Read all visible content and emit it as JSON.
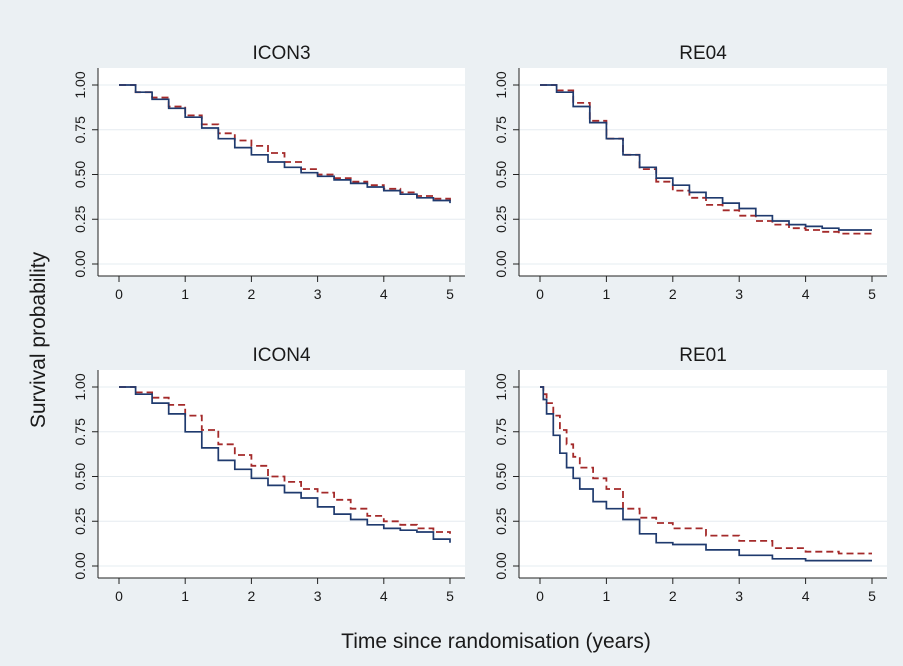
{
  "colors": {
    "outer_background": "#ebf0f3",
    "panel_background": "#ffffff",
    "series_solid": "#1f3a6e",
    "series_dashed": "#a42a2a"
  },
  "figure": {
    "xlabel": "Time since randomisation (years)",
    "ylabel": "Survival probability"
  },
  "chart_data": [
    {
      "type": "line",
      "title": "ICON3",
      "xlim": [
        0,
        5
      ],
      "ylim": [
        0,
        1
      ],
      "x_ticks": [
        "0",
        "1",
        "2",
        "3",
        "4",
        "5"
      ],
      "y_ticks": [
        "0.00",
        "0.25",
        "0.50",
        "0.75",
        "1.00"
      ],
      "grid": true,
      "series": [
        {
          "style": "solid",
          "x": [
            0,
            0.25,
            0.5,
            0.75,
            1,
            1.25,
            1.5,
            1.75,
            2,
            2.25,
            2.5,
            2.75,
            3,
            3.25,
            3.5,
            3.75,
            4,
            4.25,
            4.5,
            4.75,
            5
          ],
          "y": [
            1.0,
            0.96,
            0.92,
            0.87,
            0.82,
            0.76,
            0.7,
            0.65,
            0.61,
            0.57,
            0.54,
            0.51,
            0.49,
            0.47,
            0.45,
            0.43,
            0.41,
            0.39,
            0.37,
            0.355,
            0.34
          ]
        },
        {
          "style": "dashed",
          "x": [
            0,
            0.25,
            0.5,
            0.75,
            1,
            1.25,
            1.5,
            1.75,
            2,
            2.25,
            2.5,
            2.75,
            3,
            3.25,
            3.5,
            3.75,
            4,
            4.25,
            4.5,
            4.75,
            5
          ],
          "y": [
            1.0,
            0.96,
            0.93,
            0.88,
            0.83,
            0.78,
            0.73,
            0.69,
            0.66,
            0.62,
            0.57,
            0.53,
            0.5,
            0.48,
            0.46,
            0.44,
            0.42,
            0.4,
            0.38,
            0.365,
            0.35
          ]
        }
      ]
    },
    {
      "type": "line",
      "title": "RE04",
      "xlim": [
        0,
        5
      ],
      "ylim": [
        0,
        1
      ],
      "x_ticks": [
        "0",
        "1",
        "2",
        "3",
        "4",
        "5"
      ],
      "y_ticks": [
        "0.00",
        "0.25",
        "0.50",
        "0.75",
        "1.00"
      ],
      "grid": true,
      "series": [
        {
          "style": "solid",
          "x": [
            0,
            0.25,
            0.5,
            0.75,
            1,
            1.25,
            1.5,
            1.75,
            2,
            2.25,
            2.5,
            2.75,
            3,
            3.25,
            3.5,
            3.75,
            4,
            4.25,
            4.5,
            4.75,
            5
          ],
          "y": [
            1.0,
            0.96,
            0.88,
            0.79,
            0.7,
            0.61,
            0.54,
            0.48,
            0.44,
            0.4,
            0.37,
            0.34,
            0.31,
            0.27,
            0.24,
            0.22,
            0.21,
            0.2,
            0.19,
            0.19,
            0.19
          ]
        },
        {
          "style": "dashed",
          "x": [
            0,
            0.25,
            0.5,
            0.75,
            1,
            1.25,
            1.5,
            1.75,
            2,
            2.25,
            2.5,
            2.75,
            3,
            3.25,
            3.5,
            3.75,
            4,
            4.25,
            4.5,
            4.75,
            5
          ],
          "y": [
            1.0,
            0.97,
            0.9,
            0.8,
            0.7,
            0.61,
            0.53,
            0.46,
            0.41,
            0.37,
            0.33,
            0.3,
            0.27,
            0.24,
            0.22,
            0.2,
            0.19,
            0.18,
            0.17,
            0.17,
            0.17
          ]
        }
      ]
    },
    {
      "type": "line",
      "title": "ICON4",
      "xlim": [
        0,
        5
      ],
      "ylim": [
        0,
        1
      ],
      "x_ticks": [
        "0",
        "1",
        "2",
        "3",
        "4",
        "5"
      ],
      "y_ticks": [
        "0.00",
        "0.25",
        "0.50",
        "0.75",
        "1.00"
      ],
      "grid": true,
      "series": [
        {
          "style": "solid",
          "x": [
            0,
            0.25,
            0.5,
            0.75,
            1,
            1.25,
            1.5,
            1.75,
            2,
            2.25,
            2.5,
            2.75,
            3,
            3.25,
            3.5,
            3.75,
            4,
            4.25,
            4.5,
            4.75,
            5
          ],
          "y": [
            1.0,
            0.96,
            0.91,
            0.85,
            0.75,
            0.66,
            0.59,
            0.54,
            0.49,
            0.45,
            0.41,
            0.38,
            0.33,
            0.29,
            0.26,
            0.23,
            0.21,
            0.2,
            0.19,
            0.15,
            0.13
          ]
        },
        {
          "style": "dashed",
          "x": [
            0,
            0.25,
            0.5,
            0.75,
            1,
            1.25,
            1.5,
            1.75,
            2,
            2.25,
            2.5,
            2.75,
            3,
            3.25,
            3.5,
            3.75,
            4,
            4.25,
            4.5,
            4.75,
            5
          ],
          "y": [
            1.0,
            0.97,
            0.94,
            0.9,
            0.84,
            0.76,
            0.68,
            0.62,
            0.56,
            0.5,
            0.47,
            0.43,
            0.41,
            0.37,
            0.32,
            0.28,
            0.25,
            0.23,
            0.21,
            0.19,
            0.18
          ]
        }
      ]
    },
    {
      "type": "line",
      "title": "RE01",
      "xlim": [
        0,
        5
      ],
      "ylim": [
        0,
        1
      ],
      "x_ticks": [
        "0",
        "1",
        "2",
        "3",
        "4",
        "5"
      ],
      "y_ticks": [
        "0.00",
        "0.25",
        "0.50",
        "0.75",
        "1.00"
      ],
      "grid": true,
      "series": [
        {
          "style": "solid",
          "x": [
            0,
            0.05,
            0.1,
            0.2,
            0.3,
            0.4,
            0.5,
            0.6,
            0.8,
            1,
            1.25,
            1.5,
            1.75,
            2,
            2.5,
            3,
            3.5,
            4,
            4.5,
            5
          ],
          "y": [
            1.0,
            0.93,
            0.85,
            0.73,
            0.63,
            0.55,
            0.49,
            0.43,
            0.36,
            0.32,
            0.26,
            0.18,
            0.13,
            0.12,
            0.09,
            0.06,
            0.04,
            0.03,
            0.03,
            0.03
          ]
        },
        {
          "style": "dashed",
          "x": [
            0,
            0.05,
            0.1,
            0.2,
            0.3,
            0.4,
            0.5,
            0.6,
            0.8,
            1,
            1.25,
            1.5,
            1.75,
            2,
            2.5,
            3,
            3.5,
            4,
            4.5,
            5
          ],
          "y": [
            1.0,
            0.96,
            0.91,
            0.84,
            0.76,
            0.68,
            0.61,
            0.55,
            0.49,
            0.43,
            0.32,
            0.27,
            0.24,
            0.21,
            0.17,
            0.14,
            0.1,
            0.08,
            0.07,
            0.07
          ]
        }
      ]
    }
  ]
}
